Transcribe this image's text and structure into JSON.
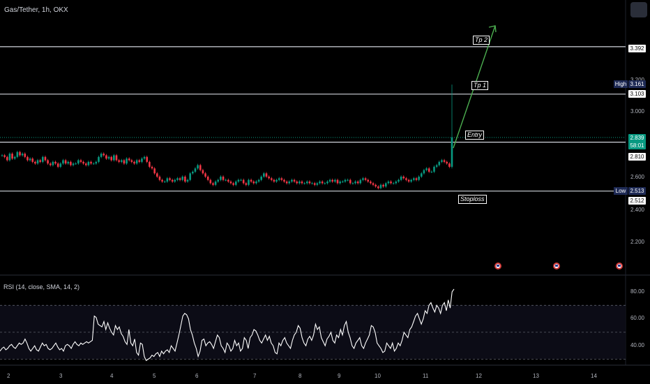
{
  "header": {
    "symbol": "Gas/Tether, 1h, OKX"
  },
  "price_axis": {
    "ticks": [
      "3.200",
      "3.000",
      "2.600",
      "2.400",
      "2.200"
    ],
    "levels": {
      "tp2": "3.392",
      "tp1": "3.103",
      "entry": "2.810",
      "stoploss": "2.512"
    },
    "high": {
      "label": "High",
      "value": "3.161"
    },
    "low": {
      "label": "Low",
      "value": "2.513"
    },
    "current": {
      "price": "2.839",
      "countdown": "58:01"
    }
  },
  "annotations": {
    "tp2": "Tp 2",
    "tp1": "Tp 1",
    "entry": "Entry",
    "stoploss": "Stoploss"
  },
  "rsi": {
    "title": "RSI (14, close, SMA, 14, 2)",
    "ticks": [
      "80.00",
      "60.00",
      "40.00"
    ]
  },
  "time_axis": {
    "labels": [
      "2",
      "3",
      "4",
      "5",
      "6",
      "7",
      "8",
      "9",
      "10",
      "11",
      "12",
      "13",
      "14"
    ]
  },
  "colors": {
    "up": "#089981",
    "down": "#f23645",
    "arrow": "#4caf50",
    "rsi_line": "#ffffff"
  },
  "icons": {
    "event_flag": "us-flag-icon",
    "menu": "menu-icon"
  },
  "chart_data": {
    "type": "candlestick",
    "interval": "1h",
    "price_range": [
      2.0,
      3.5
    ],
    "close_series": [
      2.73,
      2.72,
      2.7,
      2.74,
      2.71,
      2.72,
      2.75,
      2.73,
      2.74,
      2.72,
      2.7,
      2.71,
      2.69,
      2.68,
      2.7,
      2.69,
      2.72,
      2.7,
      2.68,
      2.67,
      2.69,
      2.68,
      2.66,
      2.68,
      2.7,
      2.68,
      2.69,
      2.67,
      2.68,
      2.68,
      2.7,
      2.69,
      2.68,
      2.67,
      2.69,
      2.68,
      2.68,
      2.69,
      2.72,
      2.74,
      2.73,
      2.71,
      2.72,
      2.7,
      2.73,
      2.7,
      2.69,
      2.7,
      2.68,
      2.71,
      2.7,
      2.69,
      2.68,
      2.7,
      2.69,
      2.71,
      2.72,
      2.69,
      2.66,
      2.65,
      2.62,
      2.6,
      2.58,
      2.57,
      2.57,
      2.59,
      2.58,
      2.57,
      2.58,
      2.59,
      2.58,
      2.6,
      2.57,
      2.58,
      2.62,
      2.63,
      2.65,
      2.67,
      2.64,
      2.62,
      2.6,
      2.58,
      2.56,
      2.55,
      2.57,
      2.58,
      2.6,
      2.58,
      2.58,
      2.57,
      2.56,
      2.55,
      2.57,
      2.58,
      2.58,
      2.56,
      2.55,
      2.58,
      2.57,
      2.56,
      2.57,
      2.58,
      2.6,
      2.62,
      2.6,
      2.59,
      2.58,
      2.57,
      2.58,
      2.59,
      2.58,
      2.57,
      2.56,
      2.57,
      2.58,
      2.57,
      2.56,
      2.57,
      2.56,
      2.56,
      2.57,
      2.56,
      2.56,
      2.55,
      2.56,
      2.57,
      2.56,
      2.56,
      2.57,
      2.58,
      2.57,
      2.58,
      2.56,
      2.57,
      2.57,
      2.58,
      2.58,
      2.56,
      2.56,
      2.57,
      2.56,
      2.58,
      2.59,
      2.58,
      2.57,
      2.56,
      2.55,
      2.54,
      2.53,
      2.55,
      2.54,
      2.56,
      2.57,
      2.56,
      2.56,
      2.57,
      2.58,
      2.6,
      2.59,
      2.58,
      2.57,
      2.58,
      2.59,
      2.58,
      2.6,
      2.62,
      2.64,
      2.65,
      2.63,
      2.63,
      2.66,
      2.67,
      2.69,
      2.7,
      2.69,
      2.68,
      2.66,
      2.84
    ],
    "high": 3.161,
    "low": 2.513,
    "last_price": 2.839,
    "horizontal_levels": [
      3.392,
      3.103,
      2.81,
      2.512
    ],
    "rsi_range": [
      20,
      90
    ],
    "rsi_bands": [
      70,
      50,
      30
    ],
    "rsi_series": [
      36,
      38,
      39,
      37,
      38,
      40,
      41,
      39,
      38,
      40,
      42,
      41,
      42,
      45,
      42,
      38,
      36,
      38,
      40,
      37,
      36,
      39,
      42,
      40,
      41,
      38,
      37,
      38,
      40,
      42,
      39,
      37,
      38,
      36,
      40,
      41,
      40,
      38,
      41,
      43,
      41,
      40,
      42,
      41,
      42,
      43,
      42,
      43,
      44,
      62,
      61,
      56,
      55,
      54,
      58,
      52,
      57,
      53,
      50,
      48,
      55,
      52,
      54,
      49,
      47,
      43,
      41,
      52,
      42,
      40,
      45,
      35,
      33,
      42,
      41,
      32,
      29,
      30,
      31,
      33,
      32,
      34,
      35,
      32,
      36,
      34,
      36,
      37,
      35,
      40,
      38,
      36,
      42,
      48,
      55,
      62,
      64,
      63,
      60,
      52,
      48,
      42,
      38,
      32,
      36,
      44,
      45,
      40,
      42,
      43,
      41,
      38,
      43,
      48,
      46,
      40,
      38,
      35,
      42,
      40,
      36,
      38,
      44,
      40,
      42,
      36,
      38,
      46,
      44,
      38,
      46,
      48,
      52,
      51,
      48,
      44,
      42,
      45,
      48,
      44,
      47,
      42,
      40,
      35,
      34,
      42,
      40,
      44,
      46,
      42,
      40,
      38,
      44,
      48,
      50,
      55,
      53,
      46,
      42,
      40,
      45,
      47,
      44,
      48,
      56,
      52,
      54,
      46,
      43,
      40,
      45,
      47,
      50,
      44,
      42,
      48,
      46,
      52,
      48,
      55,
      58,
      50,
      46,
      40,
      38,
      42,
      44,
      46,
      40,
      38,
      42,
      45,
      48,
      55,
      54,
      50,
      42,
      40,
      38,
      35,
      36,
      42,
      40,
      38,
      42,
      36,
      38,
      42,
      40,
      44,
      50,
      48,
      46,
      52,
      54,
      58,
      62,
      64,
      60,
      56,
      60,
      66,
      64,
      70,
      72,
      68,
      65,
      70,
      68,
      64,
      70,
      72,
      66,
      74,
      68,
      80,
      82
    ]
  }
}
